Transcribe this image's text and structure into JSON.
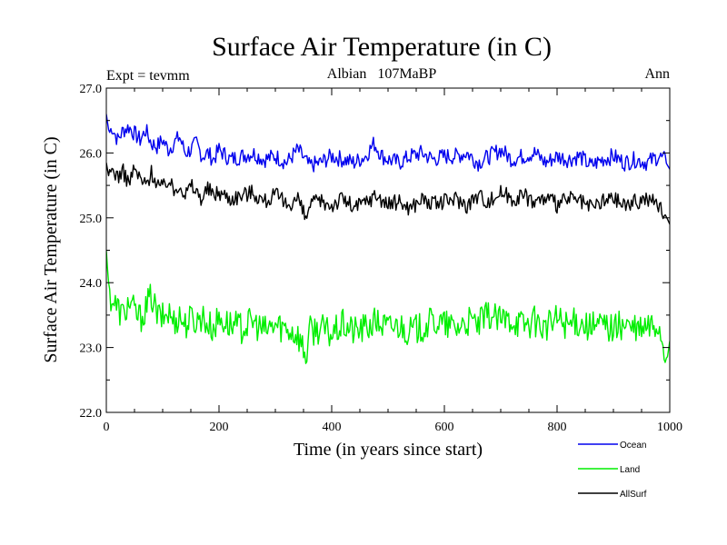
{
  "chart_data": {
    "type": "line",
    "title": "Surface Air Temperature (in C)",
    "subtitle_left": "Expt = tevmm",
    "subtitle_center": "Albian   107MaBP",
    "subtitle_right": "Ann",
    "xlabel": "Time (in years since start)",
    "ylabel": "Surface Air Temperature (in C)",
    "xlim": [
      0,
      1000
    ],
    "ylim": [
      22.0,
      27.0
    ],
    "x_ticks": [
      0,
      200,
      400,
      600,
      800,
      1000
    ],
    "x_tick_labels": [
      "0",
      "200",
      "400",
      "600",
      "800",
      "1000"
    ],
    "y_ticks": [
      22.0,
      23.0,
      24.0,
      25.0,
      26.0,
      27.0
    ],
    "y_tick_labels": [
      "22.0",
      "23.0",
      "24.0",
      "25.0",
      "26.0",
      "27.0"
    ],
    "grid": false,
    "legend_position": "bottom-right",
    "series": [
      {
        "name": "Ocean",
        "color": "#0000ee",
        "x": [
          0,
          5,
          10,
          20,
          30,
          40,
          50,
          60,
          70,
          80,
          90,
          100,
          110,
          120,
          130,
          140,
          150,
          160,
          170,
          180,
          190,
          200,
          220,
          240,
          260,
          280,
          300,
          320,
          340,
          360,
          380,
          400,
          420,
          440,
          460,
          475,
          490,
          500,
          520,
          540,
          560,
          580,
          600,
          620,
          640,
          660,
          680,
          700,
          720,
          740,
          760,
          780,
          800,
          820,
          840,
          860,
          880,
          900,
          920,
          940,
          960,
          980,
          990,
          1000
        ],
        "values": [
          26.6,
          26.3,
          26.4,
          26.2,
          26.35,
          26.4,
          26.3,
          26.2,
          26.35,
          26.15,
          26.1,
          26.2,
          26.05,
          26.15,
          26.25,
          26.0,
          26.05,
          26.15,
          25.95,
          26.0,
          25.9,
          26.05,
          25.9,
          25.95,
          26.0,
          25.9,
          25.95,
          25.85,
          26.05,
          25.8,
          25.85,
          25.95,
          25.9,
          25.85,
          25.95,
          26.15,
          25.95,
          25.9,
          25.85,
          25.95,
          26.0,
          25.9,
          25.95,
          25.95,
          26.0,
          25.85,
          25.95,
          26.05,
          25.9,
          25.95,
          26.0,
          25.85,
          25.95,
          25.9,
          25.95,
          25.8,
          25.9,
          25.95,
          25.85,
          25.9,
          25.85,
          25.95,
          25.9,
          25.75
        ]
      },
      {
        "name": "Land",
        "color": "#00ee00",
        "x": [
          0,
          3,
          6,
          10,
          20,
          30,
          40,
          50,
          60,
          70,
          80,
          90,
          100,
          110,
          120,
          130,
          140,
          150,
          160,
          170,
          180,
          190,
          200,
          220,
          240,
          260,
          280,
          300,
          320,
          340,
          355,
          360,
          380,
          400,
          420,
          440,
          460,
          480,
          500,
          520,
          540,
          560,
          580,
          600,
          620,
          640,
          660,
          680,
          700,
          720,
          740,
          760,
          780,
          800,
          820,
          840,
          860,
          880,
          900,
          920,
          940,
          960,
          980,
          995,
          1000
        ],
        "values": [
          24.5,
          24.1,
          23.8,
          23.75,
          23.6,
          23.5,
          23.7,
          23.55,
          23.45,
          23.6,
          23.8,
          23.5,
          23.45,
          23.55,
          23.4,
          23.5,
          23.35,
          23.45,
          23.4,
          23.5,
          23.35,
          23.3,
          23.45,
          23.35,
          23.3,
          23.4,
          23.25,
          23.35,
          23.3,
          23.2,
          22.85,
          23.25,
          23.3,
          23.2,
          23.35,
          23.25,
          23.3,
          23.4,
          23.3,
          23.35,
          23.25,
          23.3,
          23.4,
          23.35,
          23.3,
          23.4,
          23.35,
          23.5,
          23.4,
          23.45,
          23.35,
          23.4,
          23.3,
          23.45,
          23.35,
          23.4,
          23.3,
          23.35,
          23.3,
          23.35,
          23.25,
          23.3,
          23.35,
          22.8,
          23.1
        ]
      },
      {
        "name": "AllSurf",
        "color": "#000000",
        "x": [
          0,
          5,
          10,
          20,
          30,
          40,
          50,
          60,
          70,
          80,
          90,
          100,
          110,
          120,
          130,
          140,
          150,
          160,
          170,
          180,
          190,
          200,
          220,
          240,
          260,
          280,
          300,
          320,
          340,
          355,
          360,
          380,
          400,
          420,
          440,
          460,
          480,
          500,
          520,
          540,
          560,
          580,
          600,
          620,
          640,
          660,
          680,
          700,
          720,
          740,
          760,
          780,
          800,
          820,
          840,
          860,
          880,
          900,
          920,
          940,
          960,
          980,
          995,
          1000
        ],
        "values": [
          25.85,
          25.6,
          25.75,
          25.65,
          25.7,
          25.55,
          25.75,
          25.6,
          25.5,
          25.7,
          25.55,
          25.45,
          25.6,
          25.4,
          25.55,
          25.35,
          25.5,
          25.4,
          25.3,
          25.45,
          25.35,
          25.4,
          25.3,
          25.35,
          25.4,
          25.25,
          25.35,
          25.2,
          25.3,
          24.95,
          25.2,
          25.25,
          25.2,
          25.3,
          25.15,
          25.25,
          25.35,
          25.2,
          25.25,
          25.15,
          25.3,
          25.2,
          25.25,
          25.3,
          25.2,
          25.35,
          25.25,
          25.4,
          25.3,
          25.35,
          25.25,
          25.3,
          25.2,
          25.3,
          25.25,
          25.15,
          25.25,
          25.3,
          25.2,
          25.25,
          25.3,
          25.2,
          25.0,
          24.9
        ]
      }
    ]
  }
}
